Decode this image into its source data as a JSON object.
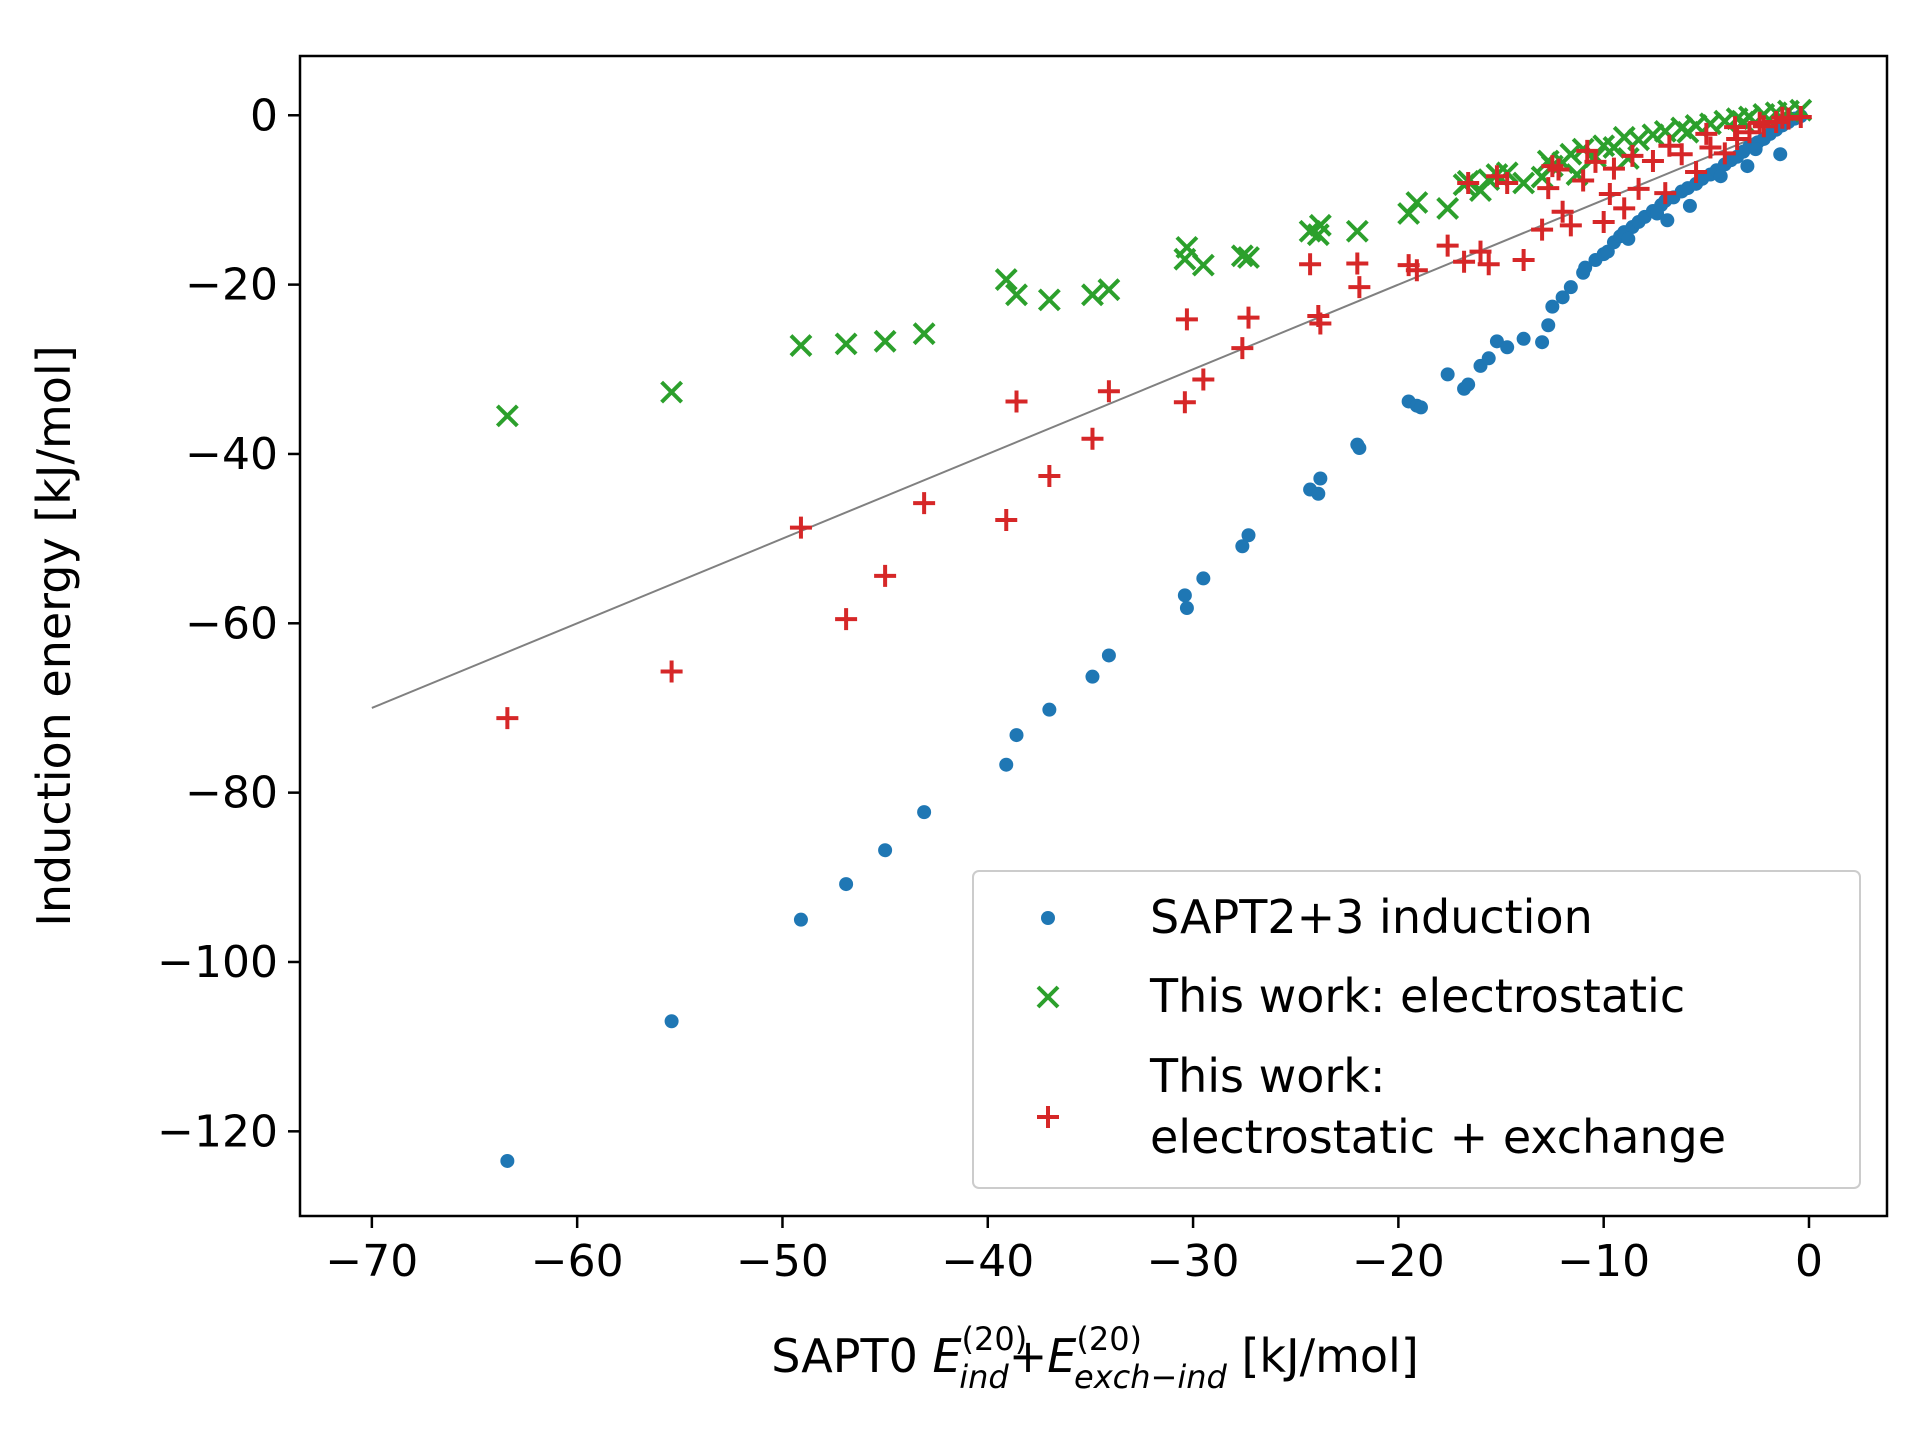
{
  "chart_data": {
    "type": "scatter",
    "xlabel_parts": {
      "prefix": "SAPT0 ",
      "e1_base": "E",
      "e1_sup": "(20)",
      "e1_sub": "ind",
      "plus": "+",
      "e2_base": "E",
      "e2_sup": "(20)",
      "e2_sub": "exch−ind",
      "suffix": " [kJ/mol]"
    },
    "ylabel": "Induction energy [kJ/mol]",
    "xlim": [
      -73.5,
      3.8
    ],
    "ylim": [
      -130,
      7
    ],
    "x_ticks": [
      -70,
      -60,
      -50,
      -40,
      -30,
      -20,
      -10,
      0
    ],
    "x_tick_labels": [
      "−70",
      "−60",
      "−50",
      "−40",
      "−30",
      "−20",
      "−10",
      "0"
    ],
    "y_ticks": [
      0,
      -20,
      -40,
      -60,
      -80,
      -100,
      -120
    ],
    "y_tick_labels": [
      "0",
      "−20",
      "−40",
      "−60",
      "−80",
      "−100",
      "−120"
    ],
    "grid": false,
    "legend_position": "lower-right",
    "reference_line": {
      "x": [
        -70,
        -1
      ],
      "y": [
        -70,
        -1
      ],
      "color": "#808080"
    },
    "series": [
      {
        "name": "SAPT2+3 induction",
        "marker": "dot",
        "color": "#1f77b4",
        "x": [
          -63.4,
          -55.4,
          -49.1,
          -46.9,
          -45.0,
          -43.1,
          -39.1,
          -38.6,
          -37.0,
          -34.9,
          -34.1,
          -30.4,
          -30.3,
          -29.5,
          -27.6,
          -27.3,
          -24.3,
          -23.9,
          -23.8,
          -22.0,
          -21.9,
          -19.5,
          -19.1,
          -18.9,
          -17.6,
          -16.8,
          -16.6,
          -16.0,
          -15.6,
          -15.2,
          -14.7,
          -13.9,
          -13.0,
          -12.7,
          -12.5,
          -12.0,
          -11.6,
          -11.0,
          -10.4,
          -10.0,
          -9.8,
          -9.5,
          -9.2,
          -9.0,
          -8.6,
          -8.3,
          -8.0,
          -7.6,
          -7.2,
          -7.0,
          -6.6,
          -6.2,
          -5.9,
          -5.5,
          -5.2,
          -4.8,
          -4.5,
          -4.1,
          -3.8,
          -3.5,
          -3.2,
          -2.9,
          -2.5,
          -2.2,
          -1.9,
          -1.6,
          -1.3,
          -1.0,
          -0.7,
          -0.4,
          -10.9,
          -8.8,
          -7.4,
          -5.8,
          -4.3,
          -2.6,
          -1.4,
          -6.9,
          -3.0
        ],
        "y": [
          -123.5,
          -107.0,
          -95.0,
          -90.8,
          -86.8,
          -82.3,
          -76.7,
          -73.2,
          -70.2,
          -66.3,
          -63.8,
          -56.7,
          -58.2,
          -54.7,
          -50.9,
          -49.6,
          -44.2,
          -44.7,
          -42.9,
          -38.9,
          -39.3,
          -33.8,
          -34.3,
          -34.5,
          -30.6,
          -32.3,
          -31.8,
          -29.6,
          -28.7,
          -26.7,
          -27.4,
          -26.4,
          -26.8,
          -24.8,
          -22.6,
          -21.5,
          -20.3,
          -18.6,
          -17.1,
          -16.4,
          -16.1,
          -15.0,
          -14.3,
          -13.8,
          -13.2,
          -12.6,
          -12.0,
          -11.3,
          -10.6,
          -10.1,
          -9.7,
          -9.0,
          -8.6,
          -8.1,
          -7.5,
          -7.0,
          -6.5,
          -5.8,
          -5.3,
          -4.9,
          -4.3,
          -3.7,
          -3.2,
          -2.8,
          -2.2,
          -1.7,
          -1.2,
          -0.8,
          -0.4,
          -0.1,
          -18.0,
          -14.6,
          -11.6,
          -10.7,
          -7.2,
          -4.0,
          -4.6,
          -12.4,
          -6.0
        ]
      },
      {
        "name": "This work: electrostatic",
        "marker": "x",
        "color": "#2ca02c",
        "x": [
          -63.4,
          -55.4,
          -49.1,
          -46.9,
          -45.0,
          -43.1,
          -39.1,
          -38.6,
          -37.0,
          -34.9,
          -34.1,
          -30.4,
          -30.3,
          -29.5,
          -27.6,
          -27.3,
          -24.3,
          -23.9,
          -23.8,
          -22.0,
          -19.5,
          -19.1,
          -17.6,
          -16.8,
          -16.6,
          -16.0,
          -15.6,
          -15.2,
          -14.7,
          -13.9,
          -13.0,
          -12.7,
          -12.5,
          -12.0,
          -11.6,
          -11.0,
          -10.4,
          -10.0,
          -9.5,
          -9.0,
          -8.3,
          -7.6,
          -7.0,
          -6.2,
          -5.5,
          -4.8,
          -4.1,
          -3.5,
          -2.9,
          -2.2,
          -1.6,
          -1.0,
          -0.4,
          -11.3,
          -8.8,
          -5.9,
          -3.2
        ],
        "y": [
          -35.5,
          -32.7,
          -27.2,
          -27.0,
          -26.7,
          -25.8,
          -19.4,
          -21.2,
          -21.8,
          -21.2,
          -20.6,
          -17.0,
          -15.6,
          -17.7,
          -16.6,
          -16.8,
          -13.7,
          -14.1,
          -13.0,
          -13.7,
          -11.6,
          -10.3,
          -11.0,
          -8.2,
          -7.8,
          -8.9,
          -7.6,
          -7.0,
          -6.8,
          -8.0,
          -7.3,
          -5.4,
          -6.0,
          -5.6,
          -4.6,
          -4.0,
          -4.9,
          -3.6,
          -3.8,
          -2.6,
          -2.9,
          -2.3,
          -1.9,
          -1.5,
          -1.2,
          -1.0,
          -0.7,
          -0.4,
          -0.2,
          0.1,
          0.3,
          0.5,
          0.6,
          -7.0,
          -5.1,
          -2.0,
          -0.8
        ]
      },
      {
        "name_lines": [
          "This work:",
          "electrostatic + exchange"
        ],
        "marker": "plus",
        "color": "#d62728",
        "x": [
          -63.4,
          -55.4,
          -49.1,
          -46.9,
          -45.0,
          -43.1,
          -39.1,
          -38.6,
          -37.0,
          -34.9,
          -34.1,
          -30.4,
          -30.3,
          -29.5,
          -27.6,
          -27.3,
          -24.3,
          -23.9,
          -23.8,
          -22.0,
          -21.9,
          -19.5,
          -19.1,
          -17.6,
          -16.8,
          -16.6,
          -16.0,
          -15.6,
          -15.2,
          -14.7,
          -13.9,
          -13.0,
          -12.7,
          -12.5,
          -12.0,
          -11.6,
          -11.0,
          -10.4,
          -10.0,
          -9.5,
          -9.0,
          -8.3,
          -7.6,
          -7.0,
          -6.2,
          -5.5,
          -4.8,
          -4.1,
          -3.5,
          -2.9,
          -2.2,
          -1.6,
          -1.0,
          -0.4,
          -10.8,
          -8.6,
          -6.8,
          -5.0,
          -3.6,
          -2.4,
          -1.3,
          -12.2,
          -9.7
        ],
        "y": [
          -71.2,
          -65.7,
          -48.7,
          -59.5,
          -54.4,
          -45.8,
          -47.8,
          -33.8,
          -42.6,
          -38.2,
          -32.6,
          -33.9,
          -24.1,
          -31.2,
          -27.5,
          -23.9,
          -17.6,
          -23.7,
          -24.6,
          -17.5,
          -20.3,
          -17.7,
          -18.3,
          -15.4,
          -17.3,
          -8.0,
          -16.1,
          -17.6,
          -7.2,
          -8.0,
          -17.1,
          -13.5,
          -8.6,
          -6.0,
          -11.4,
          -13.0,
          -7.7,
          -5.5,
          -12.6,
          -6.3,
          -11.0,
          -8.7,
          -5.4,
          -9.2,
          -4.6,
          -6.7,
          -3.8,
          -4.5,
          -2.8,
          -2.0,
          -1.3,
          -0.8,
          -0.4,
          -0.2,
          -4.2,
          -4.8,
          -3.6,
          -2.2,
          -1.4,
          -0.9,
          -0.3,
          -6.4,
          -9.3
        ]
      }
    ]
  }
}
